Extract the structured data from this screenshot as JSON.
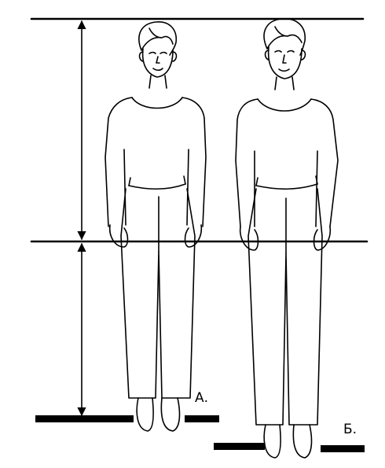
{
  "labels": {
    "figure_a": "А.",
    "figure_b": "Б."
  },
  "colors": {
    "ink": "#000000",
    "background": "#ffffff"
  }
}
